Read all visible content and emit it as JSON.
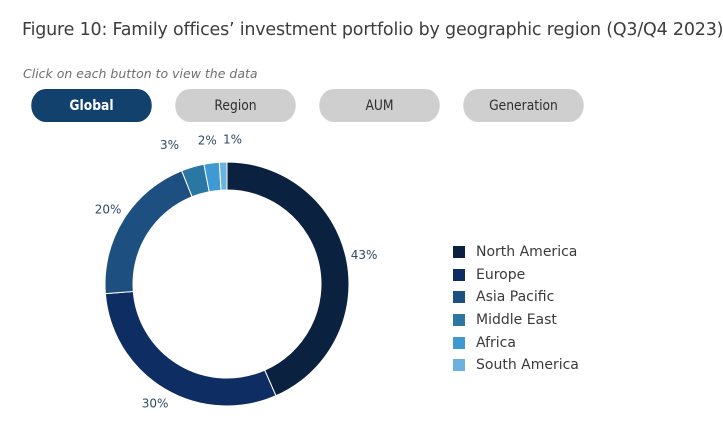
{
  "title": "Figure 10: Family offices’ investment portfolio by geographic region (Q3/Q4 2023)",
  "hint": "Click on each button to view the data",
  "buttons": [
    {
      "label": "Global",
      "active": true
    },
    {
      "label": "Region",
      "active": false
    },
    {
      "label": "AUM",
      "active": false
    },
    {
      "label": "Generation",
      "active": false
    }
  ],
  "chart_data": {
    "type": "pie",
    "donut": true,
    "legend_position": "right",
    "categories": [
      "North America",
      "Europe",
      "Asia Pacific",
      "Middle East",
      "Africa",
      "South America"
    ],
    "values": [
      43,
      30,
      20,
      3,
      2,
      1
    ],
    "value_labels": [
      "43%",
      "30%",
      "20%",
      "3%",
      "2%",
      "1%"
    ],
    "colors": [
      "#0a2240",
      "#0d2d63",
      "#1d5080",
      "#2a77a3",
      "#3f9ad4",
      "#6cb2de"
    ]
  }
}
